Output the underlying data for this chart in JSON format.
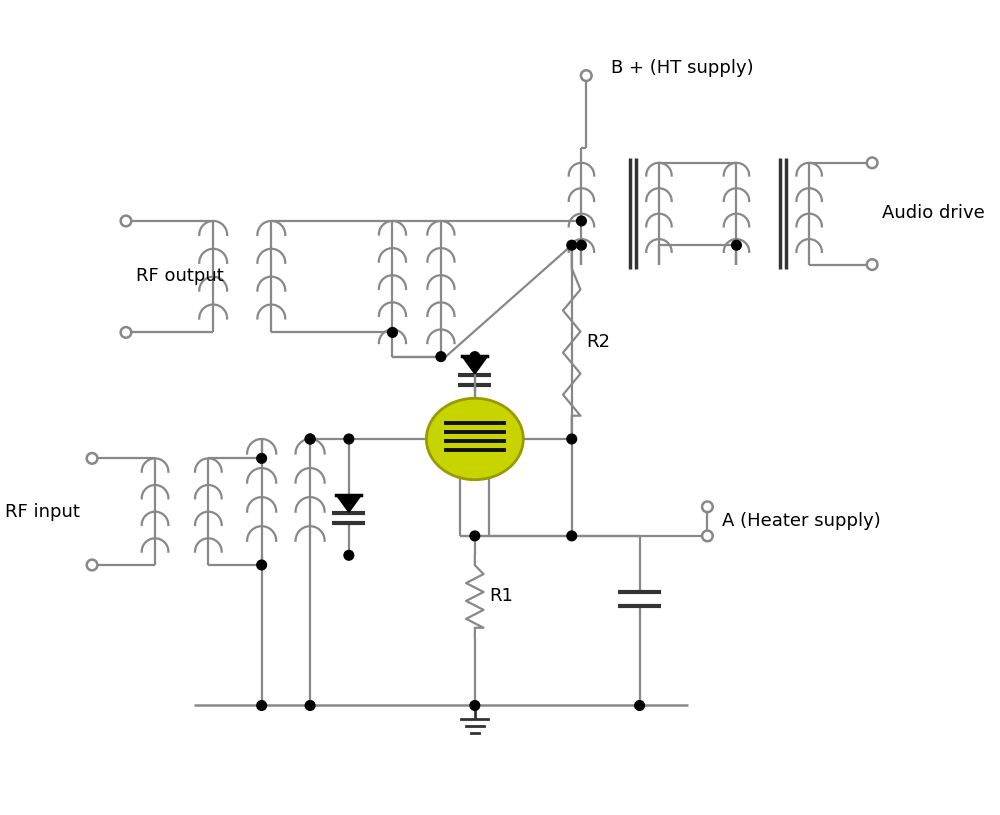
{
  "bg_color": "#ffffff",
  "lc": "#888888",
  "lc_dark": "#333333",
  "tube_fill": "#c8d400",
  "tube_edge": "#999900",
  "labels": {
    "rf_output": "RF output",
    "rf_input": "RF input",
    "b_plus": "B + (HT supply)",
    "audio_drive": "Audio drive",
    "r1": "R1",
    "r2": "R2",
    "a_heater": "A (Heater supply)"
  },
  "font_size": 13,
  "lw": 1.6
}
